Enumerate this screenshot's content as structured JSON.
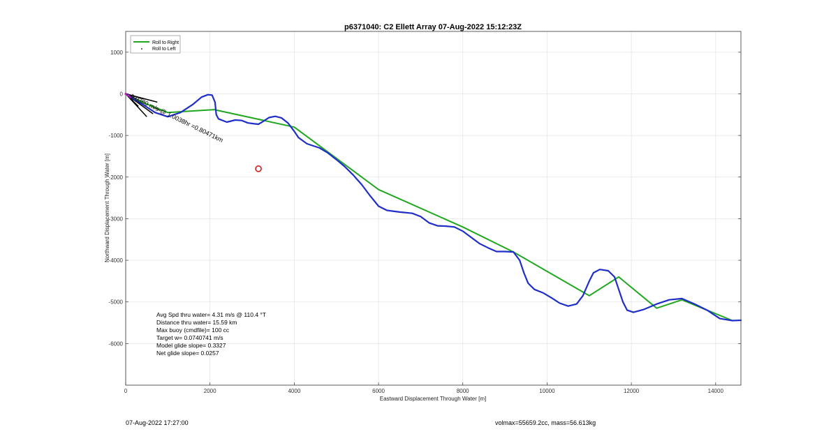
{
  "chart_data": {
    "type": "line",
    "title": "p6371040: C2 Ellett Array 07-Aug-2022 15:12:23Z",
    "xlabel": "Eastward Displacement Through Water [m]",
    "ylabel": "Northward Displacement Through Water [m]",
    "xlim": [
      0,
      14600
    ],
    "ylim": [
      -7000,
      1500
    ],
    "x_ticks": [
      0,
      2000,
      4000,
      6000,
      8000,
      10000,
      12000,
      14000
    ],
    "y_ticks": [
      1000,
      0,
      -1000,
      -2000,
      -3000,
      -4000,
      -5000,
      -6000
    ],
    "grid": true,
    "legend_position": "top-left",
    "series": [
      {
        "name": "Roll to Right",
        "style": "line",
        "color": "#1fa81f",
        "x": [
          0,
          150,
          1000,
          2100,
          4000,
          6000,
          8000,
          9200,
          11000,
          11700,
          12600,
          13200,
          14400
        ],
        "y": [
          0,
          -100,
          -450,
          -380,
          -800,
          -2300,
          -3200,
          -3800,
          -4850,
          -4400,
          -5150,
          -4950,
          -5450
        ]
      },
      {
        "name": "Roll to Left",
        "style": "marker",
        "color": "#000000",
        "x": [
          20,
          60,
          110,
          160
        ],
        "y": [
          -20,
          -60,
          -100,
          -150
        ]
      },
      {
        "name": "",
        "style": "line",
        "color": "#1f2ec8",
        "x": [
          0,
          150,
          400,
          700,
          1000,
          1300,
          1600,
          1800,
          1950,
          2050,
          2120,
          2150,
          2200,
          2400,
          2600,
          2750,
          2900,
          3050,
          3150,
          3250,
          3400,
          3550,
          3700,
          3850,
          4000,
          4100,
          4300,
          4600,
          4800,
          5000,
          5200,
          5400,
          5600,
          5800,
          6000,
          6200,
          6500,
          6800,
          7000,
          7200,
          7400,
          7600,
          7800,
          8000,
          8200,
          8400,
          8600,
          8800,
          9000,
          9200,
          9350,
          9450,
          9550,
          9700,
          9900,
          10100,
          10300,
          10500,
          10700,
          10850,
          11000,
          11100,
          11250,
          11450,
          11600,
          11700,
          11800,
          11900,
          12050,
          12300,
          12600,
          12900,
          13200,
          13500,
          13800,
          14100,
          14400,
          14600
        ],
        "y": [
          0,
          -100,
          -250,
          -450,
          -550,
          -450,
          -250,
          -80,
          -20,
          -30,
          -200,
          -500,
          -600,
          -680,
          -630,
          -640,
          -700,
          -720,
          -730,
          -670,
          -570,
          -540,
          -580,
          -700,
          -900,
          -1050,
          -1200,
          -1300,
          -1420,
          -1580,
          -1750,
          -1950,
          -2180,
          -2450,
          -2700,
          -2800,
          -2840,
          -2870,
          -2950,
          -3100,
          -3170,
          -3180,
          -3200,
          -3300,
          -3450,
          -3600,
          -3700,
          -3790,
          -3790,
          -3800,
          -4000,
          -4300,
          -4550,
          -4700,
          -4780,
          -4900,
          -5030,
          -5100,
          -5050,
          -4850,
          -4500,
          -4300,
          -4220,
          -4250,
          -4400,
          -4700,
          -5000,
          -5200,
          -5250,
          -5180,
          -5050,
          -4950,
          -4920,
          -5050,
          -5200,
          -5400,
          -5450,
          -5440
        ]
      }
    ],
    "markers": [
      {
        "name": "target",
        "x": 3150,
        "y": -1800,
        "color": "#cc1e1e"
      }
    ],
    "annotation": "0.0380 m/s @ 1.0038hr =0.80471km",
    "stats": [
      "Avg Spd thru water=  4.31 m/s @ 110.4 °T",
      "Distance thru water= 15.59 km",
      "Max buoy (cmdfile)= 100 cc",
      "Target w= 0.0740741 m/s",
      "Model glide slope= 0.3327",
      "Net glide slope= 0.0257"
    ]
  },
  "footer": {
    "left": "07-Aug-2022 17:27:00",
    "right": "volmax=55659.2cc, mass=56.613kg"
  }
}
